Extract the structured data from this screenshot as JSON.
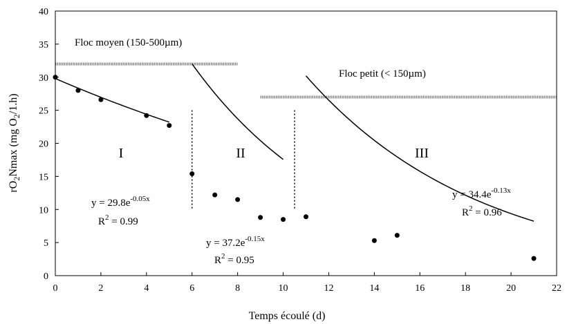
{
  "chart_data": {
    "type": "scatter",
    "xlabel": "Temps écoulé (d)",
    "ylabel": "rO2Nmax (mg O2/1.h)",
    "xlim": [
      0,
      22
    ],
    "ylim": [
      0,
      40
    ],
    "xticks": [
      0,
      2,
      4,
      6,
      8,
      10,
      12,
      14,
      16,
      18,
      20,
      22
    ],
    "yticks": [
      0,
      5,
      10,
      15,
      20,
      25,
      30,
      35,
      40
    ],
    "grid": false,
    "series": [
      {
        "points": [
          [
            0,
            30.0
          ],
          [
            1,
            28.0
          ],
          [
            2,
            26.6
          ],
          [
            4,
            24.2
          ],
          [
            5,
            22.7
          ]
        ]
      },
      {
        "points": [
          [
            6,
            15.4
          ],
          [
            7,
            12.2
          ],
          [
            8,
            11.5
          ],
          [
            9,
            8.8
          ],
          [
            10,
            8.5
          ]
        ]
      },
      {
        "points": [
          [
            11,
            8.9
          ],
          [
            14,
            5.3
          ],
          [
            15,
            6.1
          ],
          [
            21,
            2.6
          ]
        ]
      }
    ],
    "fits": [
      {
        "a": 29.8,
        "b": -0.05,
        "x0": 0,
        "x_from": 0,
        "x_to": 5,
        "equation_base": "y = 29.8e",
        "equation_exp": "-0.05x",
        "r2_value": " = 0.99"
      },
      {
        "a": 37.2,
        "b": -0.15,
        "x0": 5,
        "x_from": 6,
        "x_to": 10,
        "equation_base": "y = 37.2e",
        "equation_exp": "-0.15x",
        "r2_value": " = 0.95"
      },
      {
        "a": 34.4,
        "b": -0.13,
        "x0": 10,
        "x_from": 11,
        "x_to": 21,
        "equation_base": "y = 34.4e",
        "equation_exp": "-0.13x",
        "r2_value": " = 0.96"
      }
    ],
    "phases": [
      {
        "label": "I"
      },
      {
        "label": "II"
      },
      {
        "label": "III"
      }
    ],
    "phase_dividers": [
      6,
      10.5
    ],
    "floc_bands": [
      {
        "label": "Floc moyen (150-500µm)",
        "x_from": 0,
        "x_to": 8,
        "y": 32
      },
      {
        "label": "Floc petit (< 150µm)",
        "x_from": 9,
        "x_to": 22,
        "y": 27
      }
    ]
  }
}
